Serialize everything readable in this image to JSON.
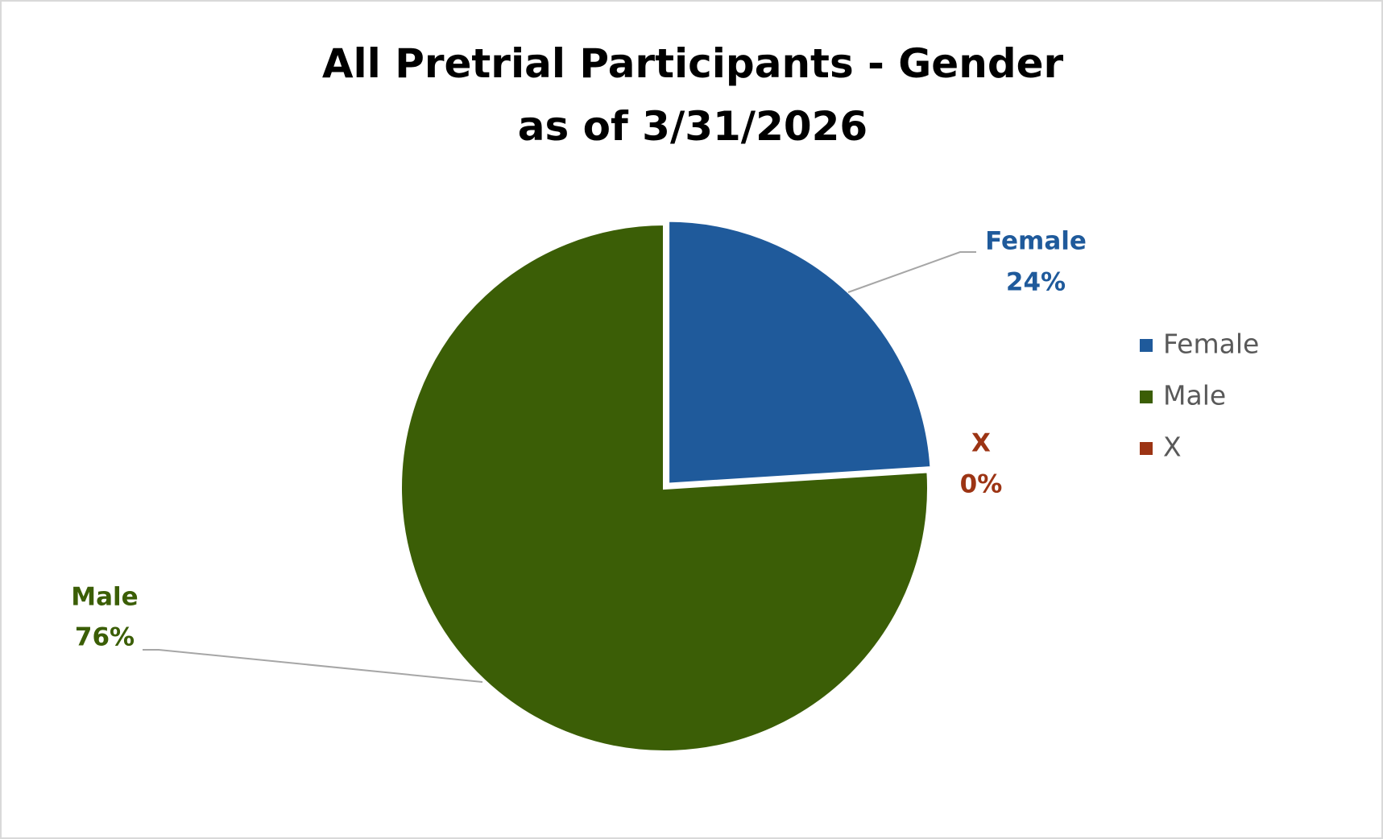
{
  "chart_data": {
    "type": "pie",
    "title": "All Pretrial Participants - Gender as of 3/31/2026",
    "categories": [
      "Female",
      "Male",
      "X"
    ],
    "values": [
      24,
      76,
      0
    ],
    "value_labels": [
      "24%",
      "76%",
      "0%"
    ],
    "colors": [
      "#1f5a9b",
      "#3b5e06",
      "#9c3414"
    ],
    "legend": "right"
  }
}
